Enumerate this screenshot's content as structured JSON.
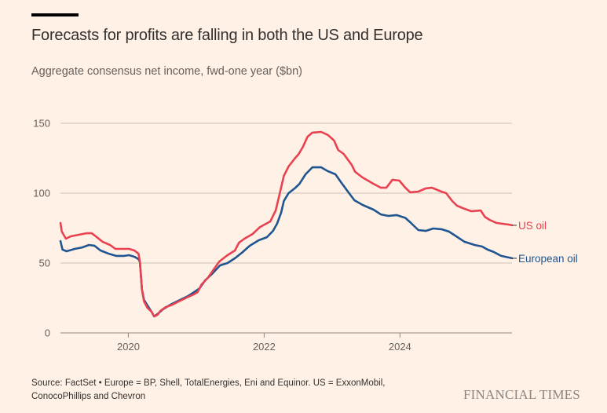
{
  "header": {
    "title": "Forecasts for profits are falling in both the US and Europe",
    "subtitle": "Aggregate consensus net income, fwd-one year ($bn)"
  },
  "footer": {
    "source": "Source: FactSet • Europe = BP, Shell, TotalEnergies, Eni and Equinor. US = ExxonMobil, ConocoPhillips and Chevron",
    "brand": "FINANCIAL TIMES"
  },
  "chart_data": {
    "type": "line",
    "title": "Forecasts for profits are falling in both the US and Europe",
    "subtitle": "Aggregate consensus net income, fwd-one year ($bn)",
    "xlabel": "",
    "ylabel": "$bn",
    "xlim": [
      2019.0,
      2025.65
    ],
    "ylim": [
      0,
      150
    ],
    "yticks": [
      0,
      50,
      100,
      150
    ],
    "ytick_labels": [
      "0",
      "50",
      "100",
      "150"
    ],
    "xticks": [
      2020,
      2022,
      2024
    ],
    "xtick_labels": [
      "2020",
      "2022",
      "2024"
    ],
    "grid": "horizontal",
    "legend": "direct labels at line ends (right)",
    "series": [
      {
        "name": "US oil",
        "label": "US oil",
        "color": "#e9414f",
        "x": [
          2019.0,
          2019.02,
          2019.08,
          2019.15,
          2019.27,
          2019.38,
          2019.46,
          2019.52,
          2019.62,
          2019.73,
          2019.81,
          2019.91,
          2020.01,
          2020.09,
          2020.15,
          2020.17,
          2020.2,
          2020.23,
          2020.28,
          2020.34,
          2020.38,
          2020.43,
          2020.47,
          2020.55,
          2020.65,
          2020.74,
          2020.86,
          2020.96,
          2021.02,
          2021.08,
          2021.17,
          2021.25,
          2021.34,
          2021.46,
          2021.57,
          2021.63,
          2021.71,
          2021.83,
          2021.94,
          2022.09,
          2022.17,
          2022.22,
          2022.29,
          2022.36,
          2022.45,
          2022.51,
          2022.57,
          2022.64,
          2022.71,
          2022.84,
          2022.94,
          2023.03,
          2023.09,
          2023.17,
          2023.29,
          2023.34,
          2023.45,
          2023.61,
          2023.72,
          2023.8,
          2023.89,
          2023.99,
          2024.08,
          2024.15,
          2024.27,
          2024.38,
          2024.47,
          2024.61,
          2024.68,
          2024.77,
          2024.84,
          2024.95,
          2025.05,
          2025.19,
          2025.25,
          2025.32,
          2025.42,
          2025.51,
          2025.6,
          2025.65
        ],
        "values": [
          78.7,
          72.5,
          67.4,
          69.1,
          70.2,
          71.3,
          71.3,
          69.1,
          65.2,
          62.9,
          60.1,
          60.1,
          60.1,
          59.0,
          56.7,
          50.6,
          30.9,
          22.5,
          18.0,
          15.2,
          11.8,
          12.9,
          15.7,
          18.5,
          20.2,
          22.5,
          25.3,
          27.5,
          29.2,
          34.8,
          39.3,
          44.9,
          51.1,
          55.6,
          59.0,
          64.6,
          67.4,
          70.8,
          75.8,
          79.8,
          87.6,
          97.8,
          112.4,
          119.1,
          124.7,
          128.1,
          133.1,
          140.4,
          143.3,
          143.8,
          141.6,
          137.6,
          130.9,
          128.1,
          120.2,
          115.2,
          111.2,
          106.7,
          103.9,
          103.9,
          109.6,
          109.0,
          103.9,
          100.6,
          101.1,
          103.4,
          103.9,
          101.1,
          100.0,
          94.4,
          91.0,
          88.8,
          87.1,
          87.6,
          83.1,
          80.9,
          78.7,
          78.1,
          77.5,
          77.0
        ]
      },
      {
        "name": "European oil",
        "label": "European oil",
        "color": "#1f5590",
        "x": [
          2019.0,
          2019.03,
          2019.09,
          2019.21,
          2019.32,
          2019.42,
          2019.5,
          2019.59,
          2019.71,
          2019.82,
          2019.94,
          2020.01,
          2020.09,
          2020.15,
          2020.17,
          2020.2,
          2020.23,
          2020.28,
          2020.34,
          2020.38,
          2020.43,
          2020.51,
          2020.62,
          2020.76,
          2020.88,
          2020.97,
          2021.05,
          2021.13,
          2021.23,
          2021.35,
          2021.46,
          2021.57,
          2021.67,
          2021.79,
          2021.92,
          2022.04,
          2022.13,
          2022.19,
          2022.25,
          2022.29,
          2022.36,
          2022.45,
          2022.52,
          2022.61,
          2022.71,
          2022.84,
          2022.94,
          2023.05,
          2023.13,
          2023.25,
          2023.33,
          2023.45,
          2023.61,
          2023.72,
          2023.83,
          2023.95,
          2024.08,
          2024.15,
          2024.27,
          2024.38,
          2024.49,
          2024.61,
          2024.72,
          2024.81,
          2024.95,
          2025.1,
          2025.21,
          2025.29,
          2025.38,
          2025.49,
          2025.65
        ],
        "values": [
          65.7,
          59.6,
          58.4,
          60.1,
          61.2,
          62.9,
          62.4,
          59.0,
          56.7,
          55.1,
          55.1,
          55.6,
          54.5,
          52.8,
          50.6,
          30.9,
          23.6,
          19.7,
          15.2,
          11.8,
          13.5,
          16.9,
          20.2,
          23.6,
          26.4,
          29.2,
          32.0,
          37.6,
          42.1,
          48.3,
          50.0,
          53.4,
          57.3,
          62.4,
          66.3,
          68.5,
          73.0,
          78.1,
          86.0,
          94.4,
          100.0,
          103.4,
          106.7,
          113.5,
          118.5,
          118.5,
          115.7,
          113.5,
          107.9,
          100.0,
          94.9,
          91.6,
          88.2,
          84.8,
          83.7,
          84.3,
          82.3,
          79.2,
          73.6,
          73.0,
          74.7,
          74.2,
          72.5,
          69.7,
          65.2,
          62.9,
          61.8,
          59.6,
          57.9,
          55.1,
          53.4
        ]
      }
    ]
  }
}
